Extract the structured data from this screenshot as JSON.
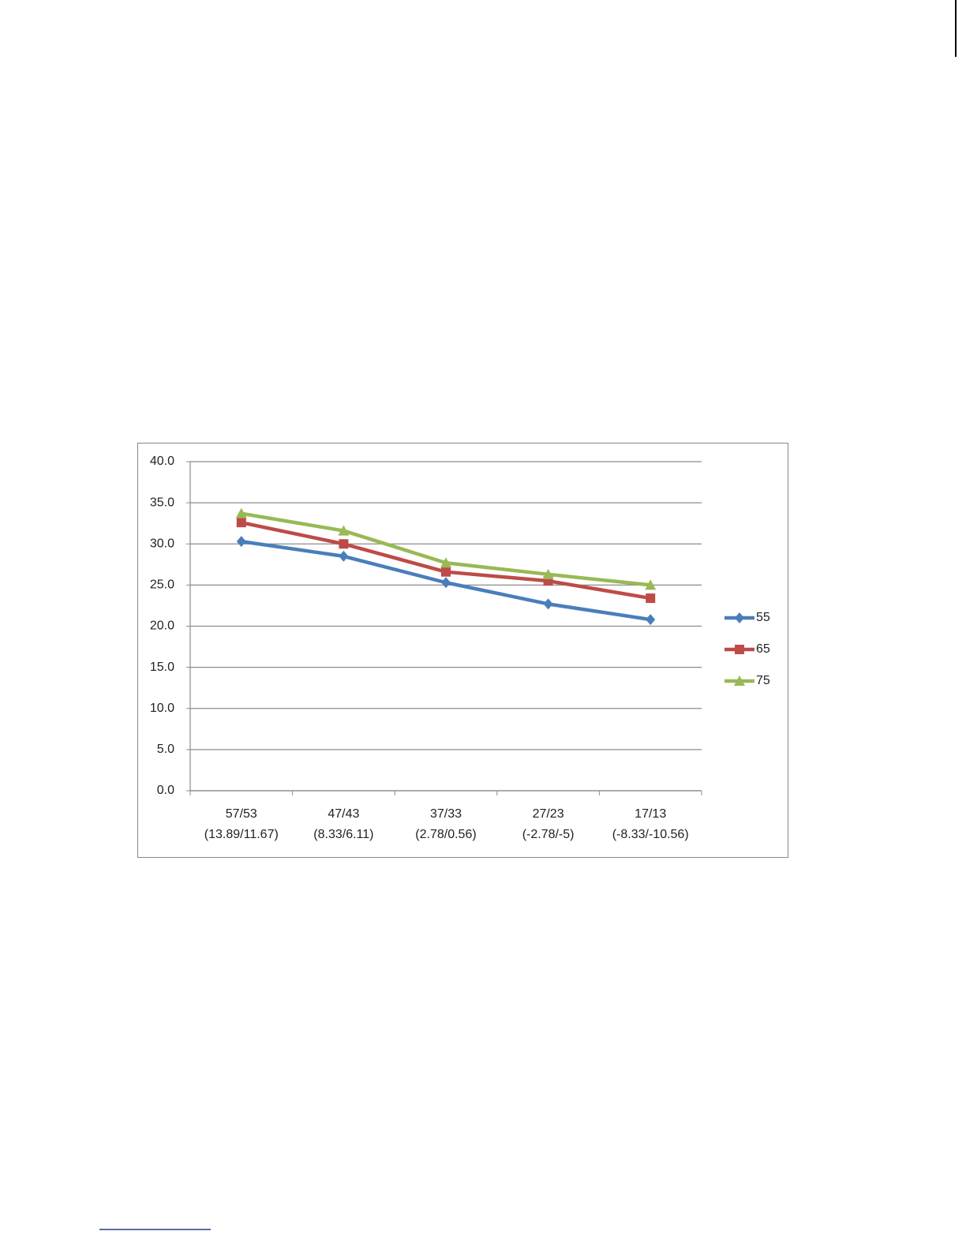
{
  "chart_data": {
    "type": "line",
    "categories": [
      [
        "57/53",
        "(13.89/11.67)"
      ],
      [
        "47/43",
        "(8.33/6.11)"
      ],
      [
        "37/33",
        "(2.78/0.56)"
      ],
      [
        "27/23",
        "(-2.78/-5)"
      ],
      [
        "17/13",
        "(-8.33/-10.56)"
      ]
    ],
    "series": [
      {
        "name": "55",
        "color": "#4a7ebb",
        "marker": "diamond",
        "values": [
          30.3,
          28.5,
          25.3,
          22.7,
          20.8
        ]
      },
      {
        "name": "65",
        "color": "#be4b48",
        "marker": "square",
        "values": [
          32.6,
          30.0,
          26.6,
          25.5,
          23.4
        ]
      },
      {
        "name": "75",
        "color": "#98b954",
        "marker": "triangle",
        "values": [
          33.7,
          31.6,
          27.7,
          26.3,
          25.0
        ]
      }
    ],
    "ylim": [
      0,
      40
    ],
    "yticks": [
      {
        "value": 0,
        "label": "0.0"
      },
      {
        "value": 5,
        "label": "5.0"
      },
      {
        "value": 10,
        "label": "10.0"
      },
      {
        "value": 15,
        "label": "15.0"
      },
      {
        "value": 20,
        "label": "20.0"
      },
      {
        "value": 25,
        "label": "25.0"
      },
      {
        "value": 30,
        "label": "30.0"
      },
      {
        "value": 35,
        "label": "35.0"
      },
      {
        "value": 40,
        "label": "40.0"
      }
    ],
    "grid": true,
    "legend": "right"
  }
}
